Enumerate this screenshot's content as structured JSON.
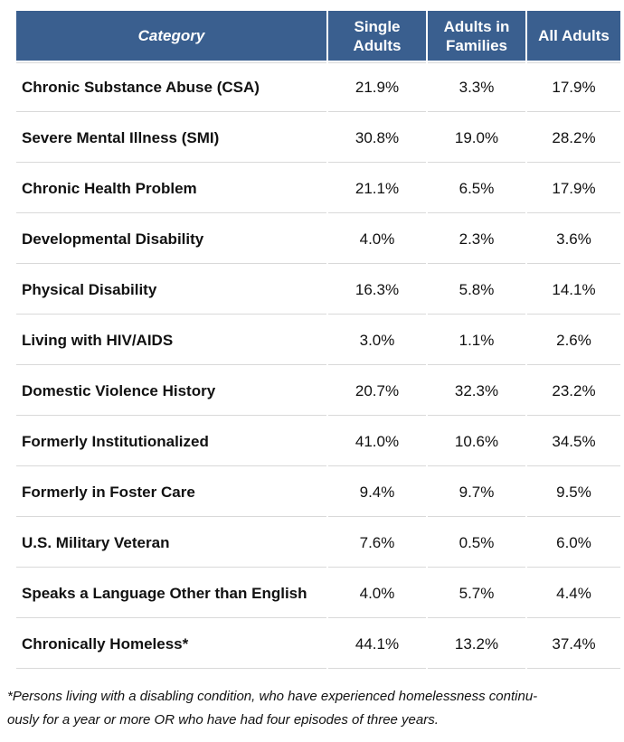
{
  "table": {
    "headers": {
      "category": "Category",
      "single_line1": "Single",
      "single_line2": "Adults",
      "families_line1": "Adults in",
      "families_line2": "Families",
      "all": "All Adults"
    },
    "rows": [
      {
        "label": "Chronic Substance Abuse (CSA)",
        "single": "21.9%",
        "families": "3.3%",
        "all": "17.9%"
      },
      {
        "label": "Severe Mental Illness (SMI)",
        "single": "30.8%",
        "families": "19.0%",
        "all": "28.2%"
      },
      {
        "label": "Chronic Health Problem",
        "single": "21.1%",
        "families": "6.5%",
        "all": "17.9%"
      },
      {
        "label": "Developmental Disability",
        "single": "4.0%",
        "families": "2.3%",
        "all": "3.6%"
      },
      {
        "label": "Physical Disability",
        "single": "16.3%",
        "families": "5.8%",
        "all": "14.1%"
      },
      {
        "label": "Living with HIV/AIDS",
        "single": "3.0%",
        "families": "1.1%",
        "all": "2.6%"
      },
      {
        "label": "Domestic Violence History",
        "single": "20.7%",
        "families": "32.3%",
        "all": "23.2%"
      },
      {
        "label": "Formerly Institutionalized",
        "single": "41.0%",
        "families": "10.6%",
        "all": "34.5%"
      },
      {
        "label": "Formerly in Foster Care",
        "single": "9.4%",
        "families": "9.7%",
        "all": "9.5%"
      },
      {
        "label": "U.S. Military Veteran",
        "single": "7.6%",
        "families": "0.5%",
        "all": "6.0%"
      },
      {
        "label": "Speaks a Language Other than English",
        "single": "4.0%",
        "families": "5.7%",
        "all": "4.4%"
      },
      {
        "label": "Chronically Homeless*",
        "single": "44.1%",
        "families": "13.2%",
        "all": "37.4%"
      }
    ]
  },
  "footnote": {
    "line1": "*Persons living with a disabling condition, who have experienced homelessness continu-",
    "line2": "ously for a year or more OR who have had four episodes of  three years."
  },
  "colors": {
    "header_bg": "#3a5f8f",
    "header_text": "#ffffff",
    "row_divider": "#d9d9d9"
  }
}
